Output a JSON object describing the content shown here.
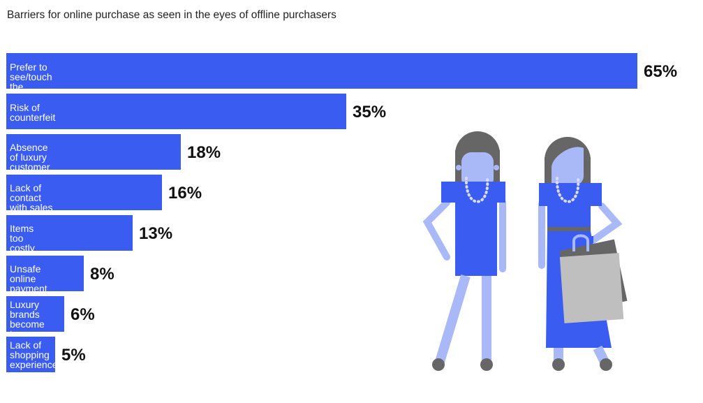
{
  "chart_data": {
    "type": "bar",
    "orientation": "horizontal",
    "title": "Barriers for online purchase as seen in the eyes of offline purchasers",
    "categories": [
      "Prefer to see/touch the product",
      "Risk of counterfeit",
      "Absence of luxury customer\nexperience",
      "Lack of contact\nwith sales associaties",
      "Items too costly\nto buy online",
      "Unsafe online\npayment",
      "Luxury brands\nbecome too\naccessible",
      "Lack of\nshopping\nexperience"
    ],
    "values": [
      65,
      35,
      18,
      16,
      13,
      8,
      6,
      5
    ],
    "value_labels": [
      "65%",
      "35%",
      "18%",
      "16%",
      "13%",
      "8%",
      "6%",
      "5%"
    ],
    "unit": "%",
    "xlim": [
      0,
      65
    ],
    "grid": false,
    "legend": "none",
    "bar_color": "#3a5cf0",
    "label_color": "#ffffff",
    "value_color": "#111111"
  },
  "illustration": {
    "dress_color": "#3a5cf0",
    "skin_color": "#a9b9f7",
    "hair_color": "#666666",
    "bag_front_color": "#bfbfbf",
    "bag_back_color": "#666666"
  }
}
